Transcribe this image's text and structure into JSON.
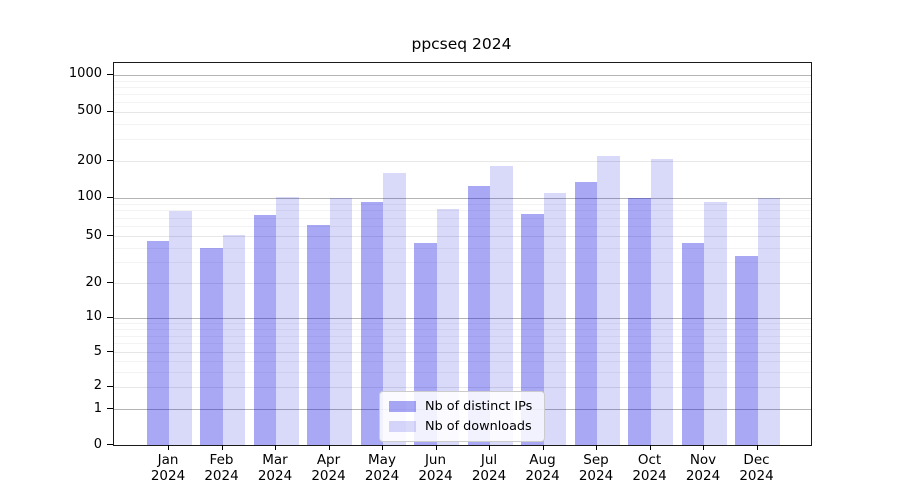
{
  "chart_data": {
    "type": "bar",
    "title": "ppcseq 2024",
    "year_label": "2024",
    "categories": [
      "Jan",
      "Feb",
      "Mar",
      "Apr",
      "May",
      "Jun",
      "Jul",
      "Aug",
      "Sep",
      "Oct",
      "Nov",
      "Dec"
    ],
    "series": [
      {
        "name": "Nb of distinct IPs",
        "color": "rgba(0,0,224,0.34)",
        "solid_hex": "#a9a9f4",
        "values": [
          45,
          40,
          73,
          61,
          92,
          44,
          125,
          74,
          134,
          100,
          44,
          34
        ]
      },
      {
        "name": "Nb of downloads",
        "color": "rgba(0,0,224,0.15)",
        "solid_hex": "#dcdcfa",
        "values": [
          79,
          51,
          102,
          99,
          160,
          82,
          183,
          110,
          222,
          210,
          93,
          99
        ]
      }
    ],
    "y_axis": {
      "scale": "symlog",
      "ticks": [
        0,
        1,
        2,
        5,
        10,
        20,
        50,
        100,
        200,
        500,
        1000
      ],
      "ylim": [
        0,
        1250
      ]
    },
    "x_axis": {
      "tick_label_format": "Month over year, two lines"
    },
    "grid": true,
    "legend": {
      "position": "bottom-center",
      "items": [
        "Nb of distinct IPs",
        "Nb of downloads"
      ]
    }
  }
}
